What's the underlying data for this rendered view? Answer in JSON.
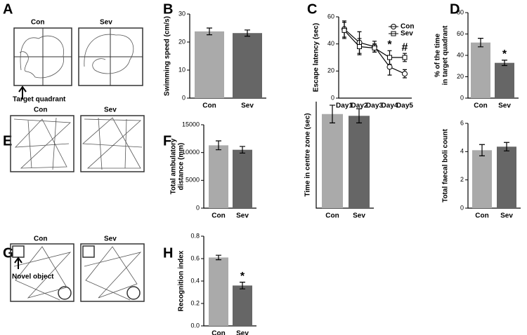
{
  "figures": [
    {
      "letter": "A",
      "labels": [
        "Con",
        "Sev"
      ],
      "caption": "Target quadrant"
    },
    {
      "letter": "E",
      "labels": [
        "Con",
        "Sev"
      ]
    },
    {
      "letter": "G",
      "labels": [
        "Con",
        "Sev"
      ],
      "caption": "Novel object"
    }
  ],
  "chart_data": [
    {
      "type": "bar",
      "letter": "B",
      "ylabel": [
        "Swimming speed (cm/s)"
      ],
      "categories": [
        "Con",
        "Sev"
      ],
      "values": [
        23.8,
        23.2
      ],
      "errors": [
        1.2,
        1.1
      ],
      "colors": [
        "#aaaaaa",
        "#666666"
      ],
      "ylim": [
        0,
        30
      ],
      "yticks": [
        0,
        10,
        20,
        30
      ]
    },
    {
      "type": "line",
      "letter": "C",
      "ylabel": [
        "Escape latency (sec)"
      ],
      "categories": [
        "Day1",
        "Day2",
        "Day3",
        "Day4",
        "Day5"
      ],
      "series": [
        {
          "name": "Con",
          "color": "#000000",
          "marker": "circle",
          "values": [
            51,
            41,
            38,
            23,
            18
          ],
          "errors": [
            6,
            8,
            4,
            6,
            3
          ]
        },
        {
          "name": "Sev",
          "color": "#000000",
          "marker": "square",
          "values": [
            50,
            38,
            37,
            30,
            30
          ],
          "errors": [
            6,
            6,
            3,
            5,
            3
          ]
        }
      ],
      "annotations": [
        {
          "text": "*",
          "x": "Day4"
        },
        {
          "text": "#",
          "x": "Day5"
        }
      ],
      "legend": "top-right",
      "ylim": [
        0,
        60
      ],
      "yticks": [
        0,
        20,
        40,
        60
      ]
    },
    {
      "type": "bar",
      "letter": "D",
      "ylabel": [
        "% of the time",
        "in target quadrant"
      ],
      "categories": [
        "Con",
        "Sev"
      ],
      "values": [
        52,
        33
      ],
      "errors": [
        4,
        2.5
      ],
      "colors": [
        "#aaaaaa",
        "#666666"
      ],
      "annotations": [
        {
          "text": "*",
          "x": "Sev"
        }
      ],
      "ylim": [
        0,
        80
      ],
      "yticks": [
        0,
        20,
        40,
        60,
        80
      ]
    },
    {
      "type": "bar",
      "letter": "F",
      "ylabel": [
        "Total ambulatory",
        "distance (mm)"
      ],
      "categories": [
        "Con",
        "Sev"
      ],
      "values": [
        11300,
        10500
      ],
      "errors": [
        800,
        600
      ],
      "colors": [
        "#aaaaaa",
        "#666666"
      ],
      "ylim": [
        0,
        15000
      ],
      "yticks": [
        0,
        5000,
        10000,
        15000
      ]
    },
    {
      "type": "bar",
      "ylabel": [
        "Time in centre zone (sec)"
      ],
      "categories": [
        "Con",
        "Sev"
      ],
      "values": [
        53,
        52
      ],
      "errors": [
        5,
        4
      ],
      "colors": [
        "#aaaaaa",
        "#666666"
      ],
      "ylim": [
        0,
        60
      ]
    },
    {
      "type": "bar",
      "ylabel": [
        "Total faecal boli count"
      ],
      "categories": [
        "Con",
        "Sev"
      ],
      "values": [
        4.1,
        4.35
      ],
      "errors": [
        0.4,
        0.3
      ],
      "colors": [
        "#aaaaaa",
        "#666666"
      ],
      "ylim": [
        0,
        6
      ],
      "yticks": [
        0,
        2,
        4,
        6
      ]
    },
    {
      "type": "bar",
      "letter": "H",
      "ylabel": [
        "Recognition index"
      ],
      "categories": [
        "Con",
        "Sev"
      ],
      "values": [
        0.61,
        0.36
      ],
      "errors": [
        0.02,
        0.03
      ],
      "colors": [
        "#aaaaaa",
        "#666666"
      ],
      "annotations": [
        {
          "text": "*",
          "x": "Sev"
        }
      ],
      "ylim": [
        0,
        0.8
      ],
      "yticks": [
        {
          "value": 0,
          "label": "0.0"
        },
        0.2,
        0.4,
        0.6,
        0.8
      ]
    }
  ]
}
